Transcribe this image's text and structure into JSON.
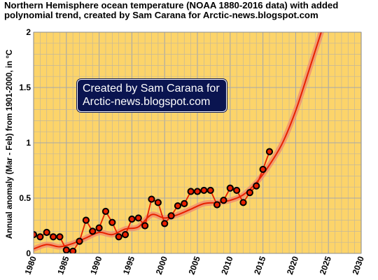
{
  "chart_data": {
    "type": "line",
    "title_line1": "Northern Hemisphere ocean temperature (NOAA 1880-2016 data) with added",
    "title_line2": "polynomial trend, created by Sam Carana for Arctic-news.blogspot.com",
    "ylabel": "Annual anomaly (Mar - Feb) from 1901-2000, in °C",
    "xlim": [
      1980,
      2030
    ],
    "ylim": [
      0,
      2
    ],
    "x_ticks": [
      "1980",
      "1985",
      "1990",
      "1995",
      "2000",
      "2005",
      "2010",
      "2015",
      "2020",
      "2025",
      "2030"
    ],
    "y_ticks": [
      "0",
      "0.5",
      "1",
      "1.5",
      "2"
    ],
    "grid": true,
    "annotation_line1": "Created by Sam Carana for",
    "annotation_line2": "Arctic-news.blogspot.com",
    "series": [
      {
        "type": "markers",
        "color": "#e82000",
        "x": [
          1980,
          1981,
          1982,
          1983,
          1984,
          1985,
          1986,
          1987,
          1988,
          1989,
          1990,
          1991,
          1992,
          1993,
          1994,
          1995,
          1996,
          1997,
          1998,
          1999,
          2000,
          2001,
          2002,
          2003,
          2004,
          2005,
          2006,
          2007,
          2008,
          2009,
          2010,
          2011,
          2012,
          2013,
          2014,
          2015,
          2016
        ],
        "y": [
          0.17,
          0.15,
          0.19,
          0.15,
          0.15,
          0.03,
          0.02,
          0.11,
          0.3,
          0.2,
          0.23,
          0.38,
          0.28,
          0.15,
          0.17,
          0.31,
          0.32,
          0.25,
          0.49,
          0.46,
          0.27,
          0.34,
          0.43,
          0.45,
          0.56,
          0.56,
          0.57,
          0.57,
          0.44,
          0.48,
          0.59,
          0.57,
          0.46,
          0.55,
          0.61,
          0.76,
          0.92
        ]
      },
      {
        "type": "trend",
        "color": "#e82000",
        "x": [
          1980,
          1982,
          1984,
          1986,
          1988,
          1990,
          1992,
          1994,
          1996,
          1998,
          2000,
          2002,
          2004,
          2006,
          2008,
          2010,
          2012,
          2014,
          2016,
          2018,
          2020,
          2022,
          2024
        ],
        "y": [
          0.04,
          0.08,
          0.06,
          0.09,
          0.14,
          0.19,
          0.17,
          0.22,
          0.24,
          0.35,
          0.32,
          0.35,
          0.4,
          0.45,
          0.46,
          0.48,
          0.53,
          0.64,
          0.8,
          1.0,
          1.29,
          1.65,
          2.02
        ]
      }
    ]
  }
}
